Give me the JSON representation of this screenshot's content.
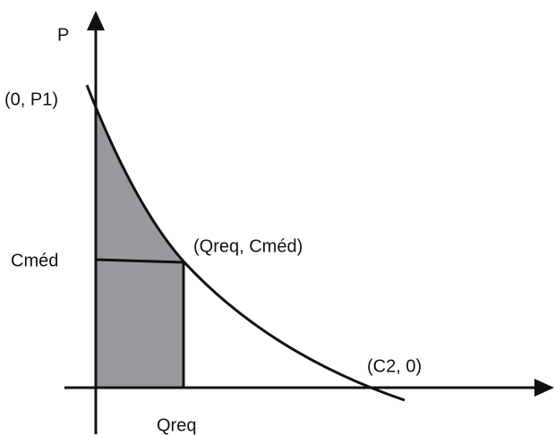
{
  "labels": {
    "p_axis": "P",
    "p1_point": "(0, P1)",
    "cmed": "Cméd",
    "qreq_point": "(Qreq, Cméd)",
    "c2_point": "(C2, 0)",
    "qreq": "Qreq"
  }
}
